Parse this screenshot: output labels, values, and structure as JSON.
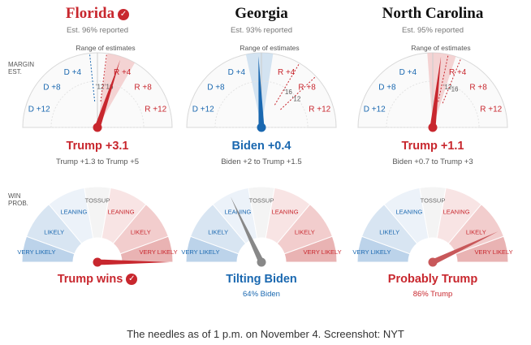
{
  "side_labels": {
    "margin": [
      "MARGIN",
      "EST."
    ],
    "win_prob": [
      "WIN",
      "PROB."
    ]
  },
  "margin_ticks": [
    "D +4",
    "D +8",
    "D +12",
    "R +4",
    "R +8",
    "R +12"
  ],
  "band_labels": [
    "VERY LIKELY",
    "LIKELY",
    "LEANING",
    "TOSSUP",
    "LEANING",
    "LIKELY",
    "VERY LIKELY"
  ],
  "chart_data": [
    {
      "type": "gauge",
      "state": "Florida",
      "winner_called": true,
      "reported": "Est. 96% reported",
      "range_label": "Range of estimates",
      "margin_estimate": 3.1,
      "margin_range": [
        1.3,
        5
      ],
      "past_markers": [
        {
          "label": "'12",
          "margin": -1
        },
        {
          "label": "'16",
          "margin": 1.2
        }
      ],
      "lead_label": "Trump +3.1",
      "range_text": "Trump +1.3 to Trump +5",
      "win_probability_trump": 100,
      "win_label": "Trump wins",
      "win_sub": "",
      "lead_color": "red"
    },
    {
      "type": "gauge",
      "state": "Georgia",
      "winner_called": false,
      "reported": "Est. 93% reported",
      "range_label": "Range of estimates",
      "margin_estimate": -0.4,
      "margin_range": [
        -2,
        1.5
      ],
      "past_markers": [
        {
          "label": "'16",
          "margin": 5.1
        },
        {
          "label": "'12",
          "margin": 7.8
        }
      ],
      "lead_label": "Biden +0.4",
      "range_text": "Biden +2 to Trump +1.5",
      "win_probability_trump": 36,
      "win_label": "Tilting Biden",
      "win_sub": "64% Biden",
      "lead_color": "blue"
    },
    {
      "type": "gauge",
      "state": "North Carolina",
      "winner_called": false,
      "reported": "Est. 95% reported",
      "range_label": "Range of estimates",
      "margin_estimate": 1.1,
      "margin_range": [
        -0.7,
        3
      ],
      "past_markers": [
        {
          "label": "'12",
          "margin": 2
        },
        {
          "label": "'16",
          "margin": 3.7
        }
      ],
      "lead_label": "Trump +1.1",
      "range_text": "Biden +0.7 to Trump +3",
      "win_probability_trump": 86,
      "win_label": "Probably Trump",
      "win_sub": "86% Trump",
      "lead_color": "red"
    }
  ],
  "caption": "The needles as of 1 p.m. on November 4. Screenshot: NYT",
  "colors": {
    "red": "#c8272e",
    "blue": "#1a68b0",
    "needle_dark": "#333333",
    "range_fill": "#f2c6c6",
    "blue_fill": "#c5dbee"
  }
}
